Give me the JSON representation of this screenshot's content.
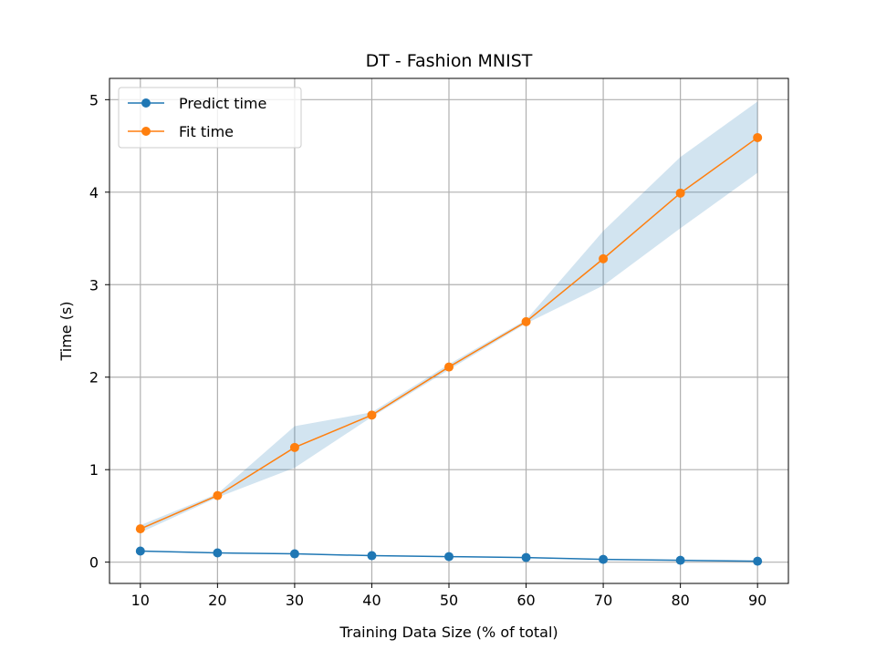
{
  "chart_data": {
    "type": "line",
    "title": "DT - Fashion MNIST",
    "xlabel": "Training Data Size (% of total)",
    "ylabel": "Time (s)",
    "x": [
      10,
      20,
      30,
      40,
      50,
      60,
      70,
      80,
      90
    ],
    "xticks": [
      "10",
      "20",
      "30",
      "40",
      "50",
      "60",
      "70",
      "80",
      "90"
    ],
    "yticks": [
      "0",
      "1",
      "2",
      "3",
      "4",
      "5"
    ],
    "xlim": [
      6,
      94
    ],
    "ylim": [
      -0.23,
      5.23
    ],
    "grid": true,
    "legend_position": "top-left",
    "series": [
      {
        "name": "Predict time",
        "color": "#1f77b4",
        "values": [
          0.12,
          0.1,
          0.09,
          0.07,
          0.06,
          0.05,
          0.03,
          0.02,
          0.01
        ],
        "band_lower": [
          0.12,
          0.1,
          0.09,
          0.07,
          0.06,
          0.05,
          0.03,
          0.02,
          0.01
        ],
        "band_upper": [
          0.12,
          0.1,
          0.09,
          0.07,
          0.06,
          0.05,
          0.03,
          0.02,
          0.01
        ]
      },
      {
        "name": "Fit time",
        "color": "#ff7f0e",
        "values": [
          0.36,
          0.72,
          1.24,
          1.59,
          2.11,
          2.6,
          3.28,
          3.99,
          4.59
        ],
        "band_lower": [
          0.32,
          0.7,
          1.02,
          1.57,
          2.08,
          2.58,
          2.99,
          3.61,
          4.21
        ],
        "band_upper": [
          0.4,
          0.74,
          1.47,
          1.62,
          2.14,
          2.62,
          3.58,
          4.38,
          4.98
        ]
      }
    ],
    "band_color": "#1f77b4"
  }
}
